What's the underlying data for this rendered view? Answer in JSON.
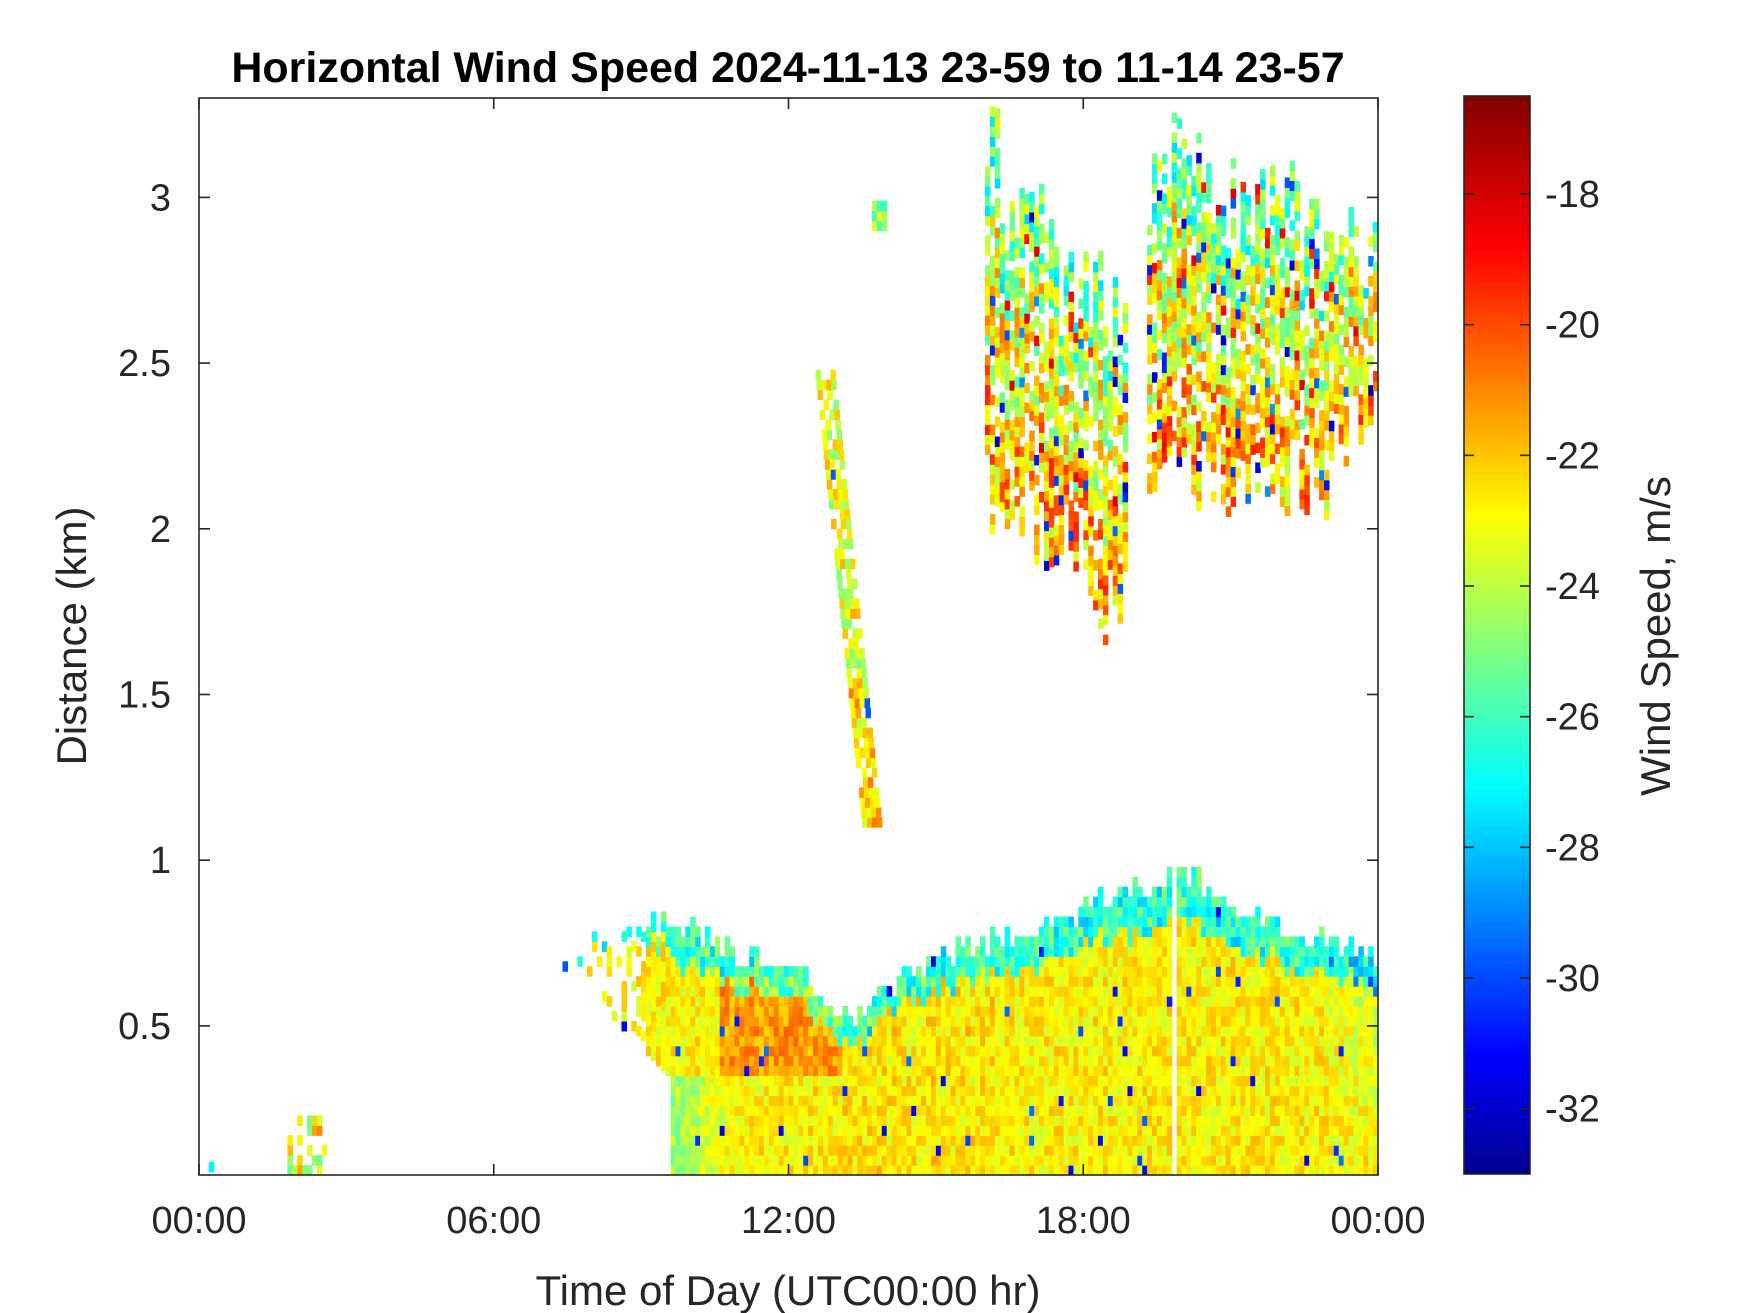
{
  "chart_data": {
    "type": "heatmap",
    "title": "Horizontal Wind Speed 2024-11-13 23-59 to 11-14 23-57",
    "xlabel": "Time of Day (UTC00:00 hr)",
    "ylabel": "Distance (km)",
    "x_unit": "hours",
    "xlim": [
      0,
      24
    ],
    "ylim": [
      0.05,
      3.3
    ],
    "x_ticks": [
      0,
      6,
      12,
      18,
      24
    ],
    "x_tick_labels": [
      "00:00",
      "06:00",
      "12:00",
      "18:00",
      "00:00"
    ],
    "y_ticks": [
      0.5,
      1,
      1.5,
      2,
      2.5,
      3
    ],
    "y_tick_labels": [
      "0.5",
      "1",
      "1.5",
      "2",
      "2.5",
      "3"
    ],
    "colorbar": {
      "label": "Wind Speed, m/s",
      "colormap": "jet",
      "clim": [
        -33,
        -16.5
      ],
      "ticks": [
        -32,
        -30,
        -28,
        -26,
        -24,
        -22,
        -20,
        -18
      ],
      "tick_labels": [
        "-32",
        "-30",
        "-28",
        "-26",
        "-24",
        "-22",
        "-20",
        "-18"
      ]
    },
    "regions": [
      {
        "region": "boundary layer",
        "time_range_hr": [
          6.5,
          24
        ],
        "distance_km": [
          0.05,
          0.95
        ],
        "top_km_by_hour": [
          [
            6.5,
            0.55
          ],
          [
            8,
            0.75
          ],
          [
            9.5,
            0.8
          ],
          [
            11,
            0.7
          ],
          [
            12,
            0.68
          ],
          [
            13.2,
            0.5
          ],
          [
            14,
            0.6
          ],
          [
            15.5,
            0.72
          ],
          [
            17,
            0.78
          ],
          [
            18.5,
            0.88
          ],
          [
            20,
            0.95
          ],
          [
            21.5,
            0.8
          ],
          [
            23,
            0.75
          ],
          [
            24,
            0.7
          ]
        ],
        "typical_speed_ms": -22.5
      },
      {
        "region": "isolated near-surface cells",
        "time_range_hr": [
          1.8,
          2.6
        ],
        "distance_km": [
          0.05,
          0.22
        ],
        "typical_speed_ms": -23
      },
      {
        "region": "sloping streak",
        "time_range_hr": [
          12.5,
          13.8
        ],
        "distance_km": [
          1.1,
          2.45
        ],
        "typical_speed_ms": -23
      },
      {
        "region": "cells near 3 km",
        "time_range_hr": [
          13.7,
          13.9
        ],
        "distance_km": [
          2.9,
          2.98
        ],
        "typical_speed_ms": -23
      },
      {
        "region": "upper layer afternoon",
        "time_range_hr": [
          16,
          18.9
        ],
        "distance_km": [
          1.72,
          3.18
        ],
        "typical_speed_ms": -23
      },
      {
        "region": "upper layer evening",
        "time_range_hr": [
          19.3,
          24
        ],
        "distance_km": [
          2.0,
          3.25
        ],
        "typical_speed_ms": -23
      }
    ]
  }
}
